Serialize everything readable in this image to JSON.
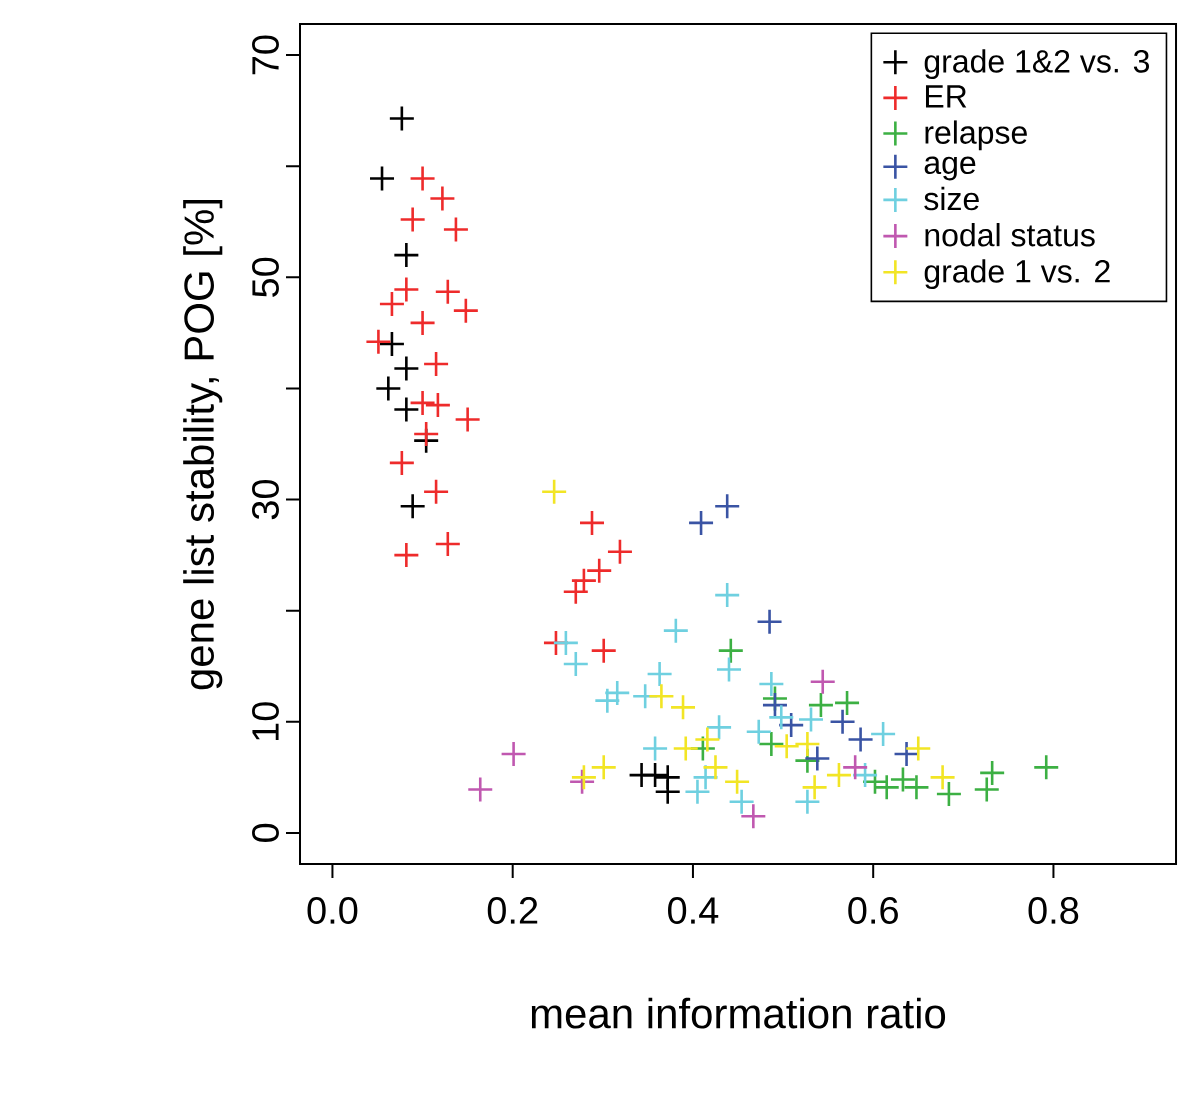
{
  "chart_data": {
    "type": "scatter",
    "xlabel": "mean information ratio",
    "ylabel": "gene list stability, POG [%]",
    "xlim": [
      -0.036,
      0.936
    ],
    "ylim": [
      -2.8,
      72.8
    ],
    "xticks": [
      {
        "value": 0,
        "label": "0.0"
      },
      {
        "value": 0.2,
        "label": "0.2"
      },
      {
        "value": 0.4,
        "label": "0.4"
      },
      {
        "value": 0.6,
        "label": "0.6"
      },
      {
        "value": 0.8,
        "label": "0.8"
      }
    ],
    "yticks": [
      0,
      10,
      {
        "value": 20,
        "label": null
      },
      30,
      {
        "value": 40,
        "label": null
      },
      50,
      {
        "value": 60,
        "label": null
      },
      70
    ],
    "legend": "top right",
    "marker": "cross",
    "grid": false,
    "series": [
      {
        "name": "grade 1&2 vs. 3",
        "color": "#000000",
        "x": [
          0.077,
          0.055,
          0.082,
          0.066,
          0.082,
          0.062,
          0.082,
          0.104,
          0.089,
          0.343,
          0.358,
          0.372,
          0.372
        ],
        "values": [
          64.3,
          58.9,
          52.0,
          44.0,
          41.8,
          40.0,
          38.1,
          35.3,
          29.4,
          5.2,
          5.2,
          5.0,
          3.7
        ]
      },
      {
        "name": "ER",
        "color": "#ee2b2b",
        "x": [
          0.1,
          0.122,
          0.089,
          0.137,
          0.082,
          0.066,
          0.128,
          0.148,
          0.1,
          0.051,
          0.115,
          0.1,
          0.117,
          0.15,
          0.104,
          0.077,
          0.115,
          0.128,
          0.082,
          0.288,
          0.319,
          0.296,
          0.279,
          0.27,
          0.248,
          0.301
        ],
        "values": [
          58.9,
          57.1,
          55.2,
          54.3,
          48.9,
          47.6,
          48.7,
          47.0,
          45.9,
          44.2,
          42.2,
          38.7,
          38.5,
          37.2,
          35.9,
          33.3,
          30.7,
          26.0,
          25.0,
          27.9,
          25.3,
          23.6,
          22.7,
          21.7,
          17.1,
          16.4
        ]
      },
      {
        "name": "relapse",
        "color": "#3cb043",
        "x": [
          0.442,
          0.491,
          0.542,
          0.487,
          0.411,
          0.527,
          0.571,
          0.602,
          0.615,
          0.633,
          0.648,
          0.684,
          0.726,
          0.732,
          0.792
        ],
        "values": [
          16.4,
          12.1,
          11.5,
          8.0,
          7.6,
          6.5,
          11.7,
          4.6,
          4.1,
          4.8,
          4.1,
          3.5,
          3.9,
          5.4,
          5.9
        ]
      },
      {
        "name": "age",
        "color": "#3a54a4",
        "x": [
          0.409,
          0.438,
          0.485,
          0.491,
          0.509,
          0.566,
          0.586,
          0.637,
          0.538
        ],
        "values": [
          27.9,
          29.4,
          19.0,
          11.5,
          9.7,
          10.0,
          8.4,
          7.1,
          6.7
        ]
      },
      {
        "name": "size",
        "color": "#6fd0e0",
        "x": [
          0.438,
          0.381,
          0.259,
          0.27,
          0.44,
          0.363,
          0.316,
          0.305,
          0.347,
          0.487,
          0.498,
          0.531,
          0.473,
          0.429,
          0.358,
          0.414,
          0.405,
          0.454,
          0.527,
          0.611,
          0.591
        ],
        "values": [
          21.4,
          18.2,
          17.1,
          15.2,
          14.7,
          14.3,
          12.6,
          11.9,
          12.3,
          13.4,
          10.4,
          10.2,
          9.1,
          9.5,
          7.6,
          5.0,
          3.7,
          2.8,
          2.8,
          8.9,
          5.2
        ]
      },
      {
        "name": "nodal status",
        "color": "#c058b0",
        "x": [
          0.544,
          0.201,
          0.164,
          0.277,
          0.467,
          0.58
        ],
        "values": [
          13.6,
          7.1,
          3.9,
          4.6,
          1.5,
          5.9
        ]
      },
      {
        "name": "grade 1 vs. 2",
        "color": "#f2e525",
        "x": [
          0.246,
          0.365,
          0.389,
          0.392,
          0.416,
          0.425,
          0.279,
          0.301,
          0.449,
          0.504,
          0.527,
          0.535,
          0.65,
          0.562,
          0.677
        ],
        "values": [
          30.7,
          12.3,
          11.3,
          7.6,
          8.4,
          5.9,
          5.0,
          5.9,
          4.6,
          7.8,
          8.0,
          4.1,
          7.6,
          5.2,
          5.0
        ]
      }
    ]
  }
}
